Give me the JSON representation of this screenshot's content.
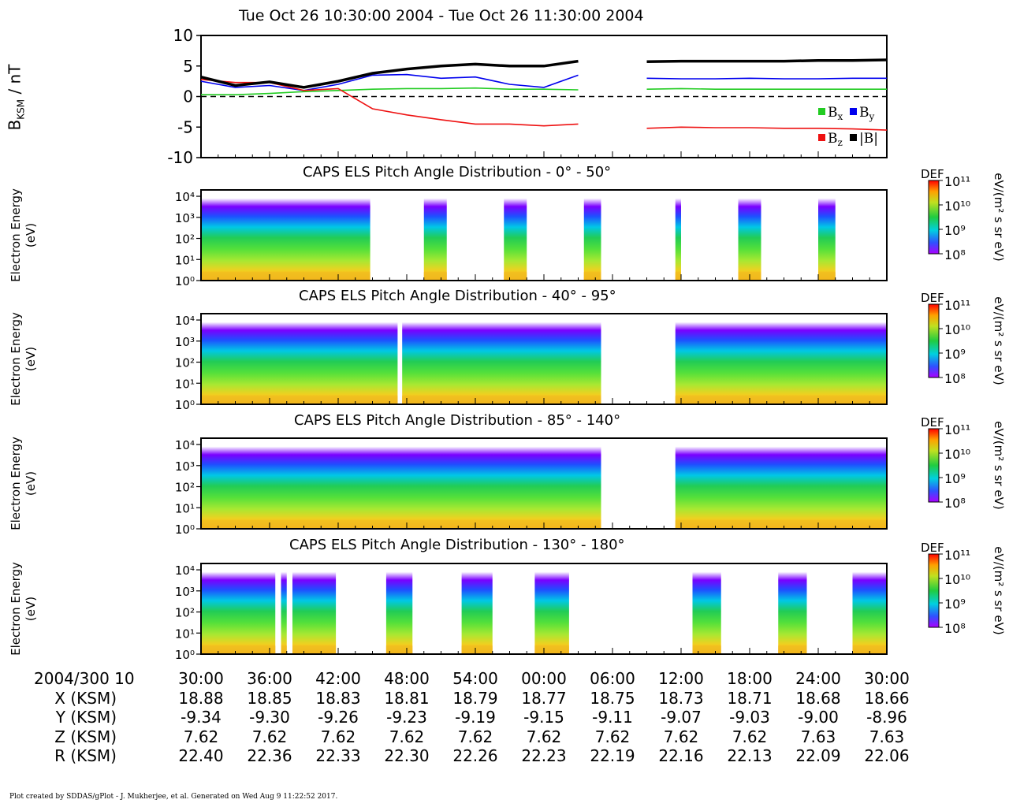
{
  "header": {
    "title": "Tue Oct 26 10:30:00 2004 - Tue Oct 26 11:30:00 2004"
  },
  "footer": {
    "text": "Plot created by SDDAS/gPlot - J. Mukherjee, et al.  Generated on Wed Aug 9 11:22:52 2017."
  },
  "colors": {
    "bx": "#22cc22",
    "by": "#0000ee",
    "bz": "#ee1111",
    "bmag": "#000000"
  },
  "colorbar": {
    "label": "DEF",
    "units": "eV/(m² s sr eV)",
    "ticks": [
      "10¹¹",
      "10¹⁰",
      "10⁹",
      "10⁸"
    ]
  },
  "energy_axis": {
    "label_line1": "Electron Energy",
    "label_line2": "(eV)",
    "ticks": [
      "10⁴",
      "10³",
      "10²",
      "10¹",
      "10⁰"
    ]
  },
  "ephemeris": {
    "time_label": "2004/300 10",
    "times": [
      "30:00",
      "36:00",
      "42:00",
      "48:00",
      "54:00",
      "00:00",
      "06:00",
      "12:00",
      "18:00",
      "24:00",
      "30:00"
    ],
    "rows": [
      {
        "label": "X (KSM)",
        "values": [
          "18.88",
          "18.85",
          "18.83",
          "18.81",
          "18.79",
          "18.77",
          "18.75",
          "18.73",
          "18.71",
          "18.68",
          "18.66"
        ]
      },
      {
        "label": "Y (KSM)",
        "values": [
          "-9.34",
          "-9.30",
          "-9.26",
          "-9.23",
          "-9.19",
          "-9.15",
          "-9.11",
          "-9.07",
          "-9.03",
          "-9.00",
          "-8.96"
        ]
      },
      {
        "label": "Z (KSM)",
        "values": [
          "7.62",
          "7.62",
          "7.62",
          "7.62",
          "7.62",
          "7.62",
          "7.62",
          "7.62",
          "7.62",
          "7.63",
          "7.63"
        ]
      },
      {
        "label": "R (KSM)",
        "values": [
          "22.40",
          "22.36",
          "22.33",
          "22.30",
          "22.26",
          "22.23",
          "22.19",
          "22.16",
          "22.13",
          "22.09",
          "22.06"
        ]
      }
    ]
  },
  "chart_data": [
    {
      "type": "line",
      "ylabel": "B",
      "ylabel_sub": "KSM",
      "ylabel_unit": " / nT",
      "ylim": [
        -10,
        10
      ],
      "yticks": [
        "10",
        "5",
        "0",
        "-5",
        "-10"
      ],
      "x_minutes": [
        0,
        3,
        6,
        9,
        12,
        15,
        18,
        21,
        24,
        27,
        30,
        33,
        36,
        39,
        42,
        45,
        48,
        51,
        54,
        57,
        60
      ],
      "series": [
        {
          "name": "B",
          "sub": "x",
          "color_key": "bx",
          "values": [
            0.3,
            0.3,
            0.5,
            0.8,
            1.0,
            1.2,
            1.3,
            1.3,
            1.4,
            1.2,
            1.2,
            1.1,
            null,
            1.2,
            1.3,
            1.2,
            1.2,
            1.2,
            1.2,
            1.2,
            1.2
          ]
        },
        {
          "name": "B",
          "sub": "y",
          "color_key": "by",
          "values": [
            2.5,
            1.5,
            1.8,
            1.0,
            2.0,
            3.5,
            3.6,
            3.0,
            3.2,
            2.0,
            1.5,
            3.5,
            null,
            3.0,
            2.9,
            2.9,
            3.0,
            2.9,
            2.9,
            3.0,
            3.0
          ]
        },
        {
          "name": "B",
          "sub": "z",
          "color_key": "bz",
          "values": [
            2.8,
            2.3,
            2.3,
            1.0,
            1.3,
            -2.0,
            -3.0,
            -3.8,
            -4.5,
            -4.5,
            -4.8,
            -4.5,
            null,
            -5.2,
            -5.0,
            -5.1,
            -5.1,
            -5.2,
            -5.2,
            -5.3,
            -5.5
          ]
        },
        {
          "name": "|B|",
          "sub": "",
          "color_key": "bmag",
          "values": [
            3.2,
            1.8,
            2.4,
            1.5,
            2.5,
            3.8,
            4.5,
            5.0,
            5.3,
            5.0,
            5.0,
            5.8,
            null,
            5.7,
            5.8,
            5.8,
            5.8,
            5.8,
            5.9,
            5.9,
            6.0
          ]
        }
      ]
    },
    {
      "type": "heatmap",
      "title": "CAPS ELS Pitch Angle Distribution - 0° - 50°",
      "ylabel": "Electron Energy (eV)",
      "y_scale": "log",
      "ylim": [
        1,
        20000
      ],
      "data_intervals_min": [
        [
          0,
          14.8
        ],
        [
          19.5,
          21.5
        ],
        [
          26.5,
          28.5
        ],
        [
          33.5,
          35.0
        ],
        [
          41.5,
          42.0
        ],
        [
          47.0,
          49.0
        ],
        [
          54.0,
          55.5
        ]
      ]
    },
    {
      "type": "heatmap",
      "title": "CAPS ELS Pitch Angle Distribution - 40° - 95°",
      "ylabel": "Electron Energy (eV)",
      "y_scale": "log",
      "ylim": [
        1,
        20000
      ],
      "data_intervals_min": [
        [
          0,
          17.2
        ],
        [
          17.6,
          35.0
        ],
        [
          41.5,
          60.0
        ]
      ]
    },
    {
      "type": "heatmap",
      "title": "CAPS ELS Pitch Angle Distribution - 85° - 140°",
      "ylabel": "Electron Energy (eV)",
      "y_scale": "log",
      "ylim": [
        1,
        20000
      ],
      "data_intervals_min": [
        [
          0,
          35.0
        ],
        [
          41.5,
          60.0
        ]
      ]
    },
    {
      "type": "heatmap",
      "title": "CAPS ELS Pitch Angle Distribution - 130° - 180°",
      "ylabel": "Electron Energy (eV)",
      "y_scale": "log",
      "ylim": [
        1,
        20000
      ],
      "data_intervals_min": [
        [
          0,
          6.5
        ],
        [
          7.0,
          7.5
        ],
        [
          8.0,
          11.8
        ],
        [
          16.2,
          18.5
        ],
        [
          22.8,
          25.5
        ],
        [
          29.2,
          32.2
        ],
        [
          43.0,
          45.5
        ],
        [
          50.5,
          53.0
        ],
        [
          57.0,
          60.0
        ]
      ]
    }
  ]
}
